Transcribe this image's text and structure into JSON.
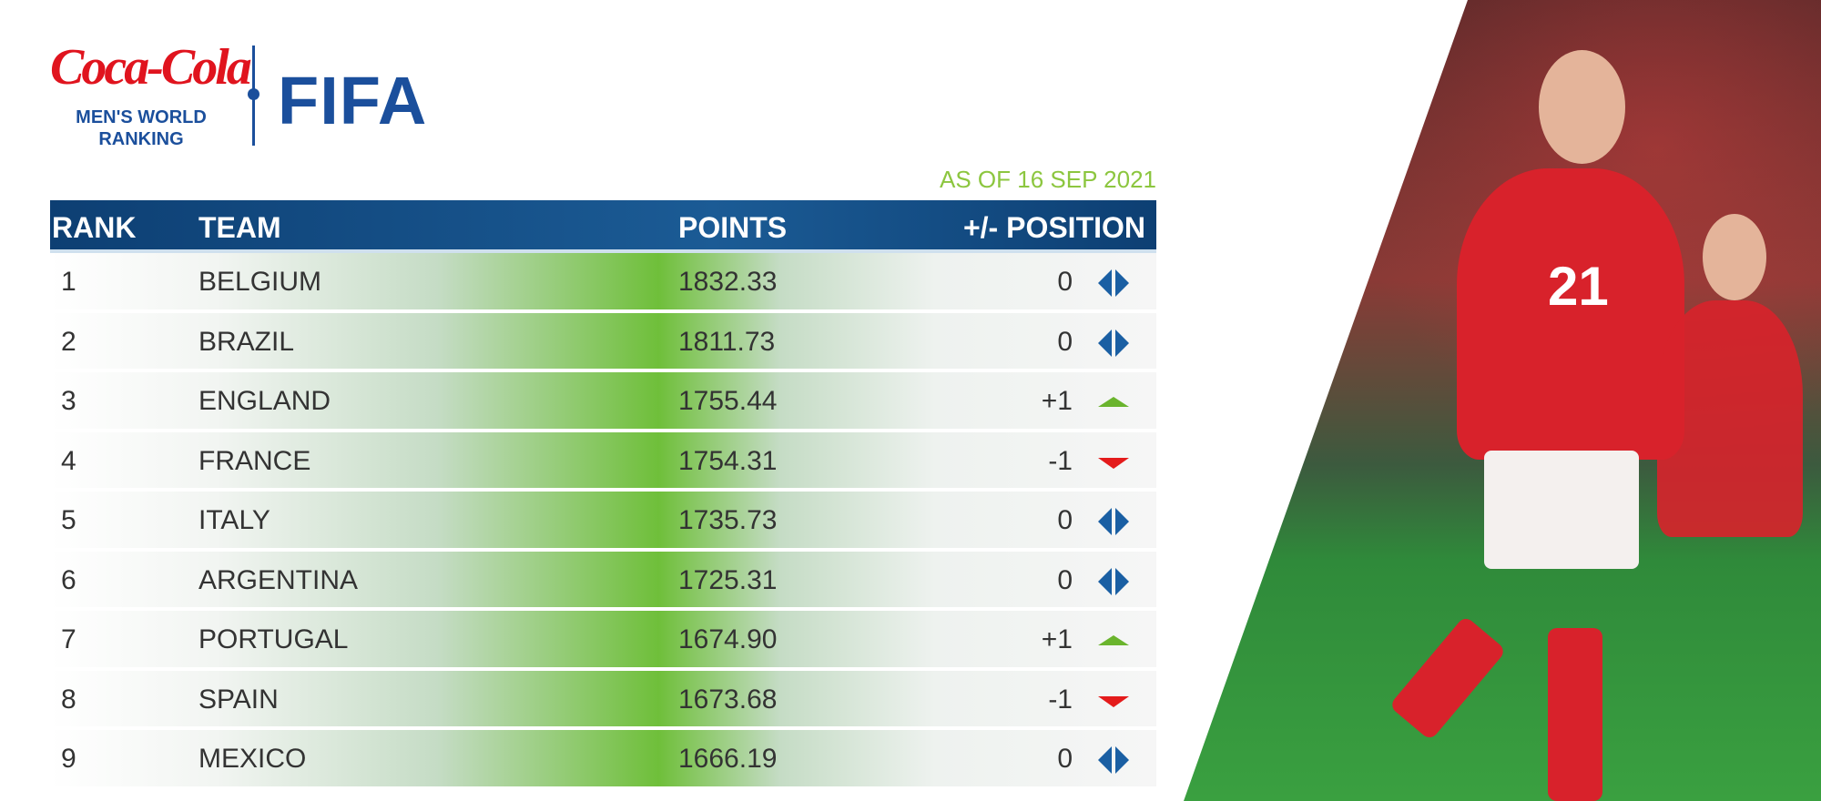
{
  "brand": {
    "sponsor": "Coca-Cola",
    "subtitle_line1": "MEN'S WORLD",
    "subtitle_line2": "RANKING",
    "org": "FIFA"
  },
  "date_label": "AS OF 16 SEP 2021",
  "columns": [
    "RANK",
    "TEAM",
    "POINTS",
    "+/- POSITION"
  ],
  "colors": {
    "header": "#0d3f73",
    "up": "#6ab42d",
    "down": "#e41b1b",
    "same": "#1a5fa3",
    "date": "#8cc63f"
  },
  "rows": [
    {
      "rank": "1",
      "team": "BELGIUM",
      "points": "1832.33",
      "change": "0",
      "trend": "same"
    },
    {
      "rank": "2",
      "team": "BRAZIL",
      "points": "1811.73",
      "change": "0",
      "trend": "same"
    },
    {
      "rank": "3",
      "team": "ENGLAND",
      "points": "1755.44",
      "change": "+1",
      "trend": "up"
    },
    {
      "rank": "4",
      "team": "FRANCE",
      "points": "1754.31",
      "change": "-1",
      "trend": "down"
    },
    {
      "rank": "5",
      "team": "ITALY",
      "points": "1735.73",
      "change": "0",
      "trend": "same"
    },
    {
      "rank": "6",
      "team": "ARGENTINA",
      "points": "1725.31",
      "change": "0",
      "trend": "same"
    },
    {
      "rank": "7",
      "team": "PORTUGAL",
      "points": "1674.90",
      "change": "+1",
      "trend": "up"
    },
    {
      "rank": "8",
      "team": "SPAIN",
      "points": "1673.68",
      "change": "-1",
      "trend": "down"
    },
    {
      "rank": "9",
      "team": "MEXICO",
      "points": "1666.19",
      "change": "0",
      "trend": "same"
    }
  ],
  "photo": {
    "jersey_number": "21"
  }
}
